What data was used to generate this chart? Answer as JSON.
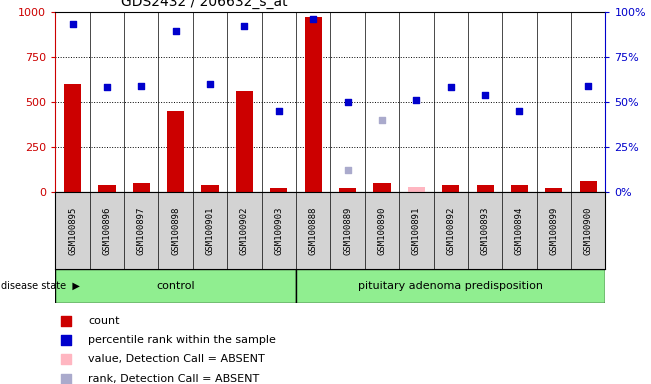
{
  "title": "GDS2432 / 206632_s_at",
  "samples": [
    "GSM100895",
    "GSM100896",
    "GSM100897",
    "GSM100898",
    "GSM100901",
    "GSM100902",
    "GSM100903",
    "GSM100888",
    "GSM100889",
    "GSM100890",
    "GSM100891",
    "GSM100892",
    "GSM100893",
    "GSM100894",
    "GSM100899",
    "GSM100900"
  ],
  "bar_values": [
    600,
    40,
    50,
    450,
    40,
    560,
    20,
    970,
    20,
    50,
    0,
    40,
    40,
    40,
    20,
    60
  ],
  "dot_values": [
    93,
    58,
    59,
    89,
    60,
    92,
    45,
    96,
    50,
    null,
    51,
    58,
    54,
    45,
    null,
    59
  ],
  "absent_rank_value": 40,
  "absent_rank_index": 9,
  "absent_bar_value": 30,
  "absent_bar_index": 10,
  "absent_dot_value": 12,
  "absent_dot_index": 8,
  "n_control": 7,
  "n_disease": 9,
  "control_label": "control",
  "disease_label": "pituitary adenoma predisposition",
  "ylim_left": [
    0,
    1000
  ],
  "ylim_right": [
    0,
    100
  ],
  "yticks_left": [
    0,
    250,
    500,
    750,
    1000
  ],
  "yticks_right": [
    0,
    25,
    50,
    75,
    100
  ],
  "grid_lines": [
    250,
    500,
    750
  ],
  "bar_color": "#CC0000",
  "dot_color": "#0000CC",
  "absent_bar_color": "#FFB6C1",
  "absent_dot_color": "#AAAACC",
  "absent_rank_color": "#AAAACC",
  "control_bg": "#90EE90",
  "disease_bg": "#90EE90",
  "sample_bg": "#D3D3D3",
  "white_bg": "#FFFFFF",
  "bar_width": 0.5
}
